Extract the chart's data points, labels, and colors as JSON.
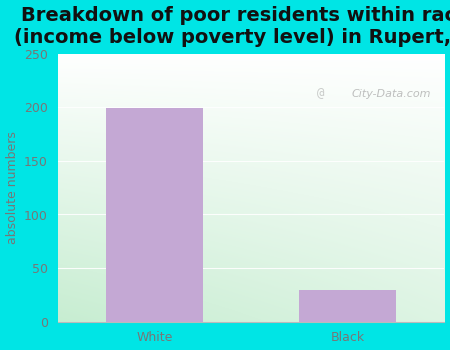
{
  "title": "Breakdown of poor residents within races\n(income below poverty level) in Rupert, GA",
  "categories": [
    "White",
    "Black"
  ],
  "values": [
    199,
    30
  ],
  "bar_color": "#c4a8d4",
  "ylabel": "absolute numbers",
  "ylim": [
    0,
    250
  ],
  "yticks": [
    0,
    50,
    100,
    150,
    200,
    250
  ],
  "background_outer": "#00e5e5",
  "background_inner_left": "#c8ecd0",
  "background_inner_right": "#f0faf0",
  "background_inner_top": "#ffffff",
  "title_fontsize": 14,
  "title_color": "#111111",
  "axis_label_fontsize": 9,
  "tick_fontsize": 9,
  "tick_color": "#777777",
  "watermark": "City-Data.com",
  "grid_color": "#e8e8e8"
}
